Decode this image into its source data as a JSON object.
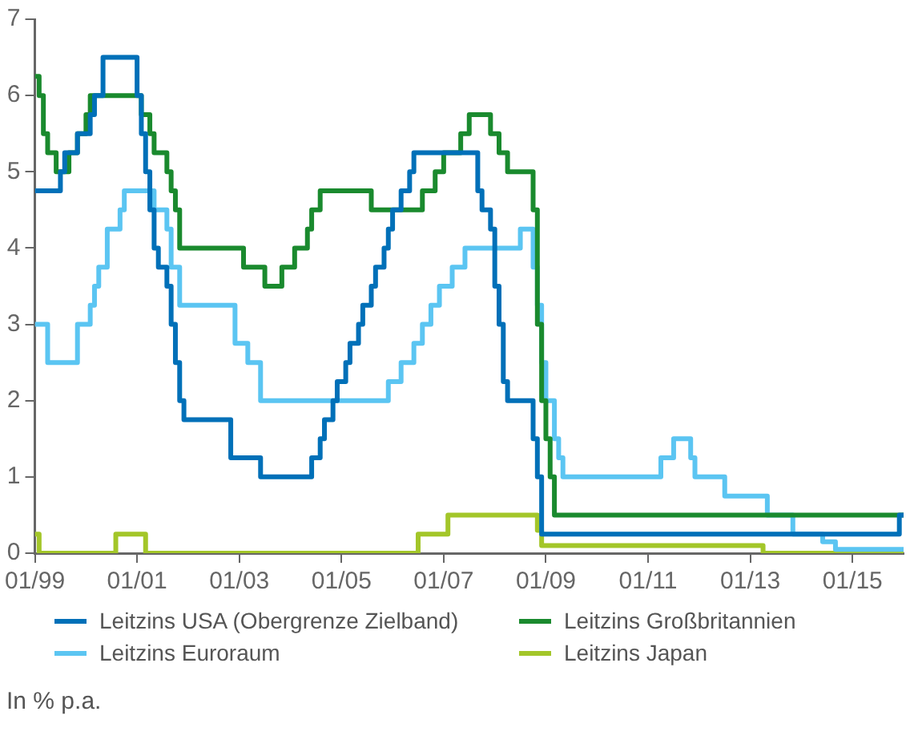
{
  "chart_data": {
    "type": "step",
    "xlim": [
      "1999-01",
      "2016-01"
    ],
    "xticks": [
      {
        "value": "1999-01",
        "label": "01/99"
      },
      {
        "value": "2001-01",
        "label": "01/01"
      },
      {
        "value": "2003-01",
        "label": "01/03"
      },
      {
        "value": "2005-01",
        "label": "01/05"
      },
      {
        "value": "2007-01",
        "label": "01/07"
      },
      {
        "value": "2009-01",
        "label": "01/09"
      },
      {
        "value": "2011-01",
        "label": "01/11"
      },
      {
        "value": "2013-01",
        "label": "01/13"
      },
      {
        "value": "2015-01",
        "label": "01/15"
      }
    ],
    "ylim": [
      0,
      7
    ],
    "yticks": [
      0,
      1,
      2,
      3,
      4,
      5,
      6,
      7
    ],
    "grid": false,
    "legend": "bottom",
    "annotations": [
      "In % p.a."
    ],
    "series": [
      {
        "name": "Leitzins USA (Obergrenze Zielband)",
        "color": "#0070b8",
        "x": [
          "1999-01",
          "1999-07",
          "1999-08",
          "1999-11",
          "2000-02",
          "2000-03",
          "2000-05",
          "2001-01",
          "2001-02",
          "2001-03",
          "2001-04",
          "2001-05",
          "2001-06",
          "2001-08",
          "2001-09",
          "2001-10",
          "2001-11",
          "2001-12",
          "2002-11",
          "2003-06",
          "2004-06",
          "2004-08",
          "2004-09",
          "2004-11",
          "2004-12",
          "2005-02",
          "2005-03",
          "2005-05",
          "2005-06",
          "2005-08",
          "2005-09",
          "2005-11",
          "2005-12",
          "2006-01",
          "2006-03",
          "2006-05",
          "2006-06",
          "2007-09",
          "2007-10",
          "2007-12",
          "2008-01",
          "2008-02",
          "2008-03",
          "2008-04",
          "2008-10",
          "2008-11",
          "2008-12",
          "2015-12",
          "2016-01"
        ],
        "values": [
          4.75,
          5.0,
          5.25,
          5.5,
          5.75,
          6.0,
          6.5,
          6.0,
          5.5,
          5.0,
          4.5,
          4.0,
          3.75,
          3.5,
          3.0,
          2.5,
          2.0,
          1.75,
          1.25,
          1.0,
          1.25,
          1.5,
          1.75,
          2.0,
          2.25,
          2.5,
          2.75,
          3.0,
          3.25,
          3.5,
          3.75,
          4.0,
          4.25,
          4.5,
          4.75,
          5.0,
          5.25,
          4.75,
          4.5,
          4.25,
          3.5,
          3.0,
          2.25,
          2.0,
          1.5,
          1.0,
          0.25,
          0.5,
          0.5
        ]
      },
      {
        "name": "Leitzins Großbritannien",
        "color": "#1a8a2e",
        "x": [
          "1999-01",
          "1999-02",
          "1999-03",
          "1999-04",
          "1999-06",
          "1999-09",
          "1999-11",
          "2000-01",
          "2000-02",
          "2001-02",
          "2001-04",
          "2001-05",
          "2001-08",
          "2001-09",
          "2001-10",
          "2001-11",
          "2003-02",
          "2003-07",
          "2003-11",
          "2004-02",
          "2004-05",
          "2004-06",
          "2004-08",
          "2005-08",
          "2006-08",
          "2006-11",
          "2007-01",
          "2007-05",
          "2007-07",
          "2007-12",
          "2008-02",
          "2008-04",
          "2008-10",
          "2008-11",
          "2008-12",
          "2009-01",
          "2009-02",
          "2009-03",
          "2016-01"
        ],
        "values": [
          6.25,
          6.0,
          5.5,
          5.25,
          5.0,
          5.25,
          5.5,
          5.75,
          6.0,
          5.75,
          5.5,
          5.25,
          5.0,
          4.75,
          4.5,
          4.0,
          3.75,
          3.5,
          3.75,
          4.0,
          4.25,
          4.5,
          4.75,
          4.5,
          4.75,
          5.0,
          5.25,
          5.5,
          5.75,
          5.5,
          5.25,
          5.0,
          4.5,
          3.0,
          2.0,
          1.5,
          1.0,
          0.5,
          0.5
        ]
      },
      {
        "name": "Leitzins Euroraum",
        "color": "#5bc5f2",
        "x": [
          "1999-01",
          "1999-04",
          "1999-11",
          "2000-02",
          "2000-03",
          "2000-04",
          "2000-06",
          "2000-09",
          "2000-10",
          "2001-05",
          "2001-08",
          "2001-09",
          "2001-11",
          "2002-12",
          "2003-03",
          "2003-06",
          "2005-12",
          "2006-03",
          "2006-06",
          "2006-08",
          "2006-10",
          "2006-12",
          "2007-03",
          "2007-06",
          "2008-07",
          "2008-10",
          "2008-11",
          "2008-12",
          "2009-01",
          "2009-03",
          "2009-04",
          "2009-05",
          "2011-04",
          "2011-07",
          "2011-11",
          "2011-12",
          "2012-07",
          "2013-05",
          "2013-11",
          "2014-06",
          "2014-09",
          "2016-01"
        ],
        "values": [
          3.0,
          2.5,
          3.0,
          3.25,
          3.5,
          3.75,
          4.25,
          4.5,
          4.75,
          4.5,
          4.25,
          3.75,
          3.25,
          2.75,
          2.5,
          2.0,
          2.25,
          2.5,
          2.75,
          3.0,
          3.25,
          3.5,
          3.75,
          4.0,
          4.25,
          3.75,
          3.25,
          2.5,
          2.0,
          1.5,
          1.25,
          1.0,
          1.25,
          1.5,
          1.25,
          1.0,
          0.75,
          0.5,
          0.25,
          0.15,
          0.05,
          0.05
        ]
      },
      {
        "name": "Leitzins Japan",
        "color": "#a3c629",
        "x": [
          "1999-01",
          "1999-02",
          "2000-08",
          "2001-03",
          "2006-07",
          "2007-02",
          "2008-11",
          "2008-12",
          "2013-04",
          "2016-01"
        ],
        "values": [
          0.25,
          0,
          0.25,
          0,
          0.25,
          0.5,
          0.3,
          0.1,
          0,
          0
        ]
      }
    ]
  }
}
